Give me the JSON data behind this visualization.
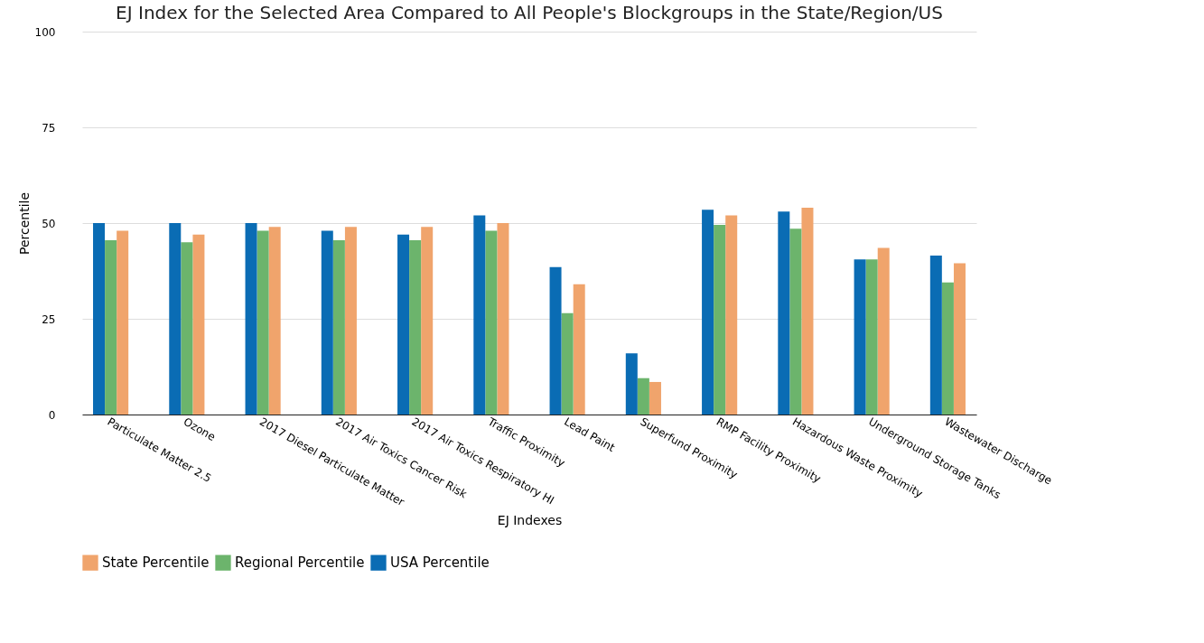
{
  "chart_data": {
    "type": "bar",
    "title": "EJ Index for the Selected Area Compared to All People's Blockgroups in the State/Region/US",
    "xlabel": "EJ Indexes",
    "ylabel": "Percentile",
    "categories": [
      "Particulate Matter 2.5",
      "Ozone",
      "2017 Diesel Particulate Matter",
      "2017 Air Toxics Cancer Risk",
      "2017 Air Toxics Respiratory HI",
      "Traffic Proximity",
      "Lead Paint",
      "Superfund Proximity",
      "RMP Facility Proximity",
      "Hazardous Waste Proximity",
      "Underground Storage Tanks",
      "Wastewater Discharge"
    ],
    "series": [
      {
        "name": "State Percentile",
        "color": "#f0a46c",
        "values": [
          48,
          47,
          49,
          49,
          49,
          50,
          34,
          8.5,
          52,
          54,
          43.5,
          39.5
        ]
      },
      {
        "name": "Regional Percentile",
        "color": "#6cb46c",
        "values": [
          45.5,
          45,
          48,
          45.5,
          45.5,
          48,
          26.5,
          9.5,
          49.5,
          48.5,
          40.5,
          34.5
        ]
      },
      {
        "name": "USA Percentile",
        "color": "#0a6cb4",
        "values": [
          50,
          50,
          50,
          48,
          47,
          52,
          38.5,
          16,
          53.5,
          53,
          40.5,
          41.5
        ]
      }
    ],
    "ylim": [
      0,
      100
    ],
    "yticks": [
      0,
      25,
      50,
      75,
      100
    ],
    "grid": "y",
    "legend": "bottom"
  }
}
